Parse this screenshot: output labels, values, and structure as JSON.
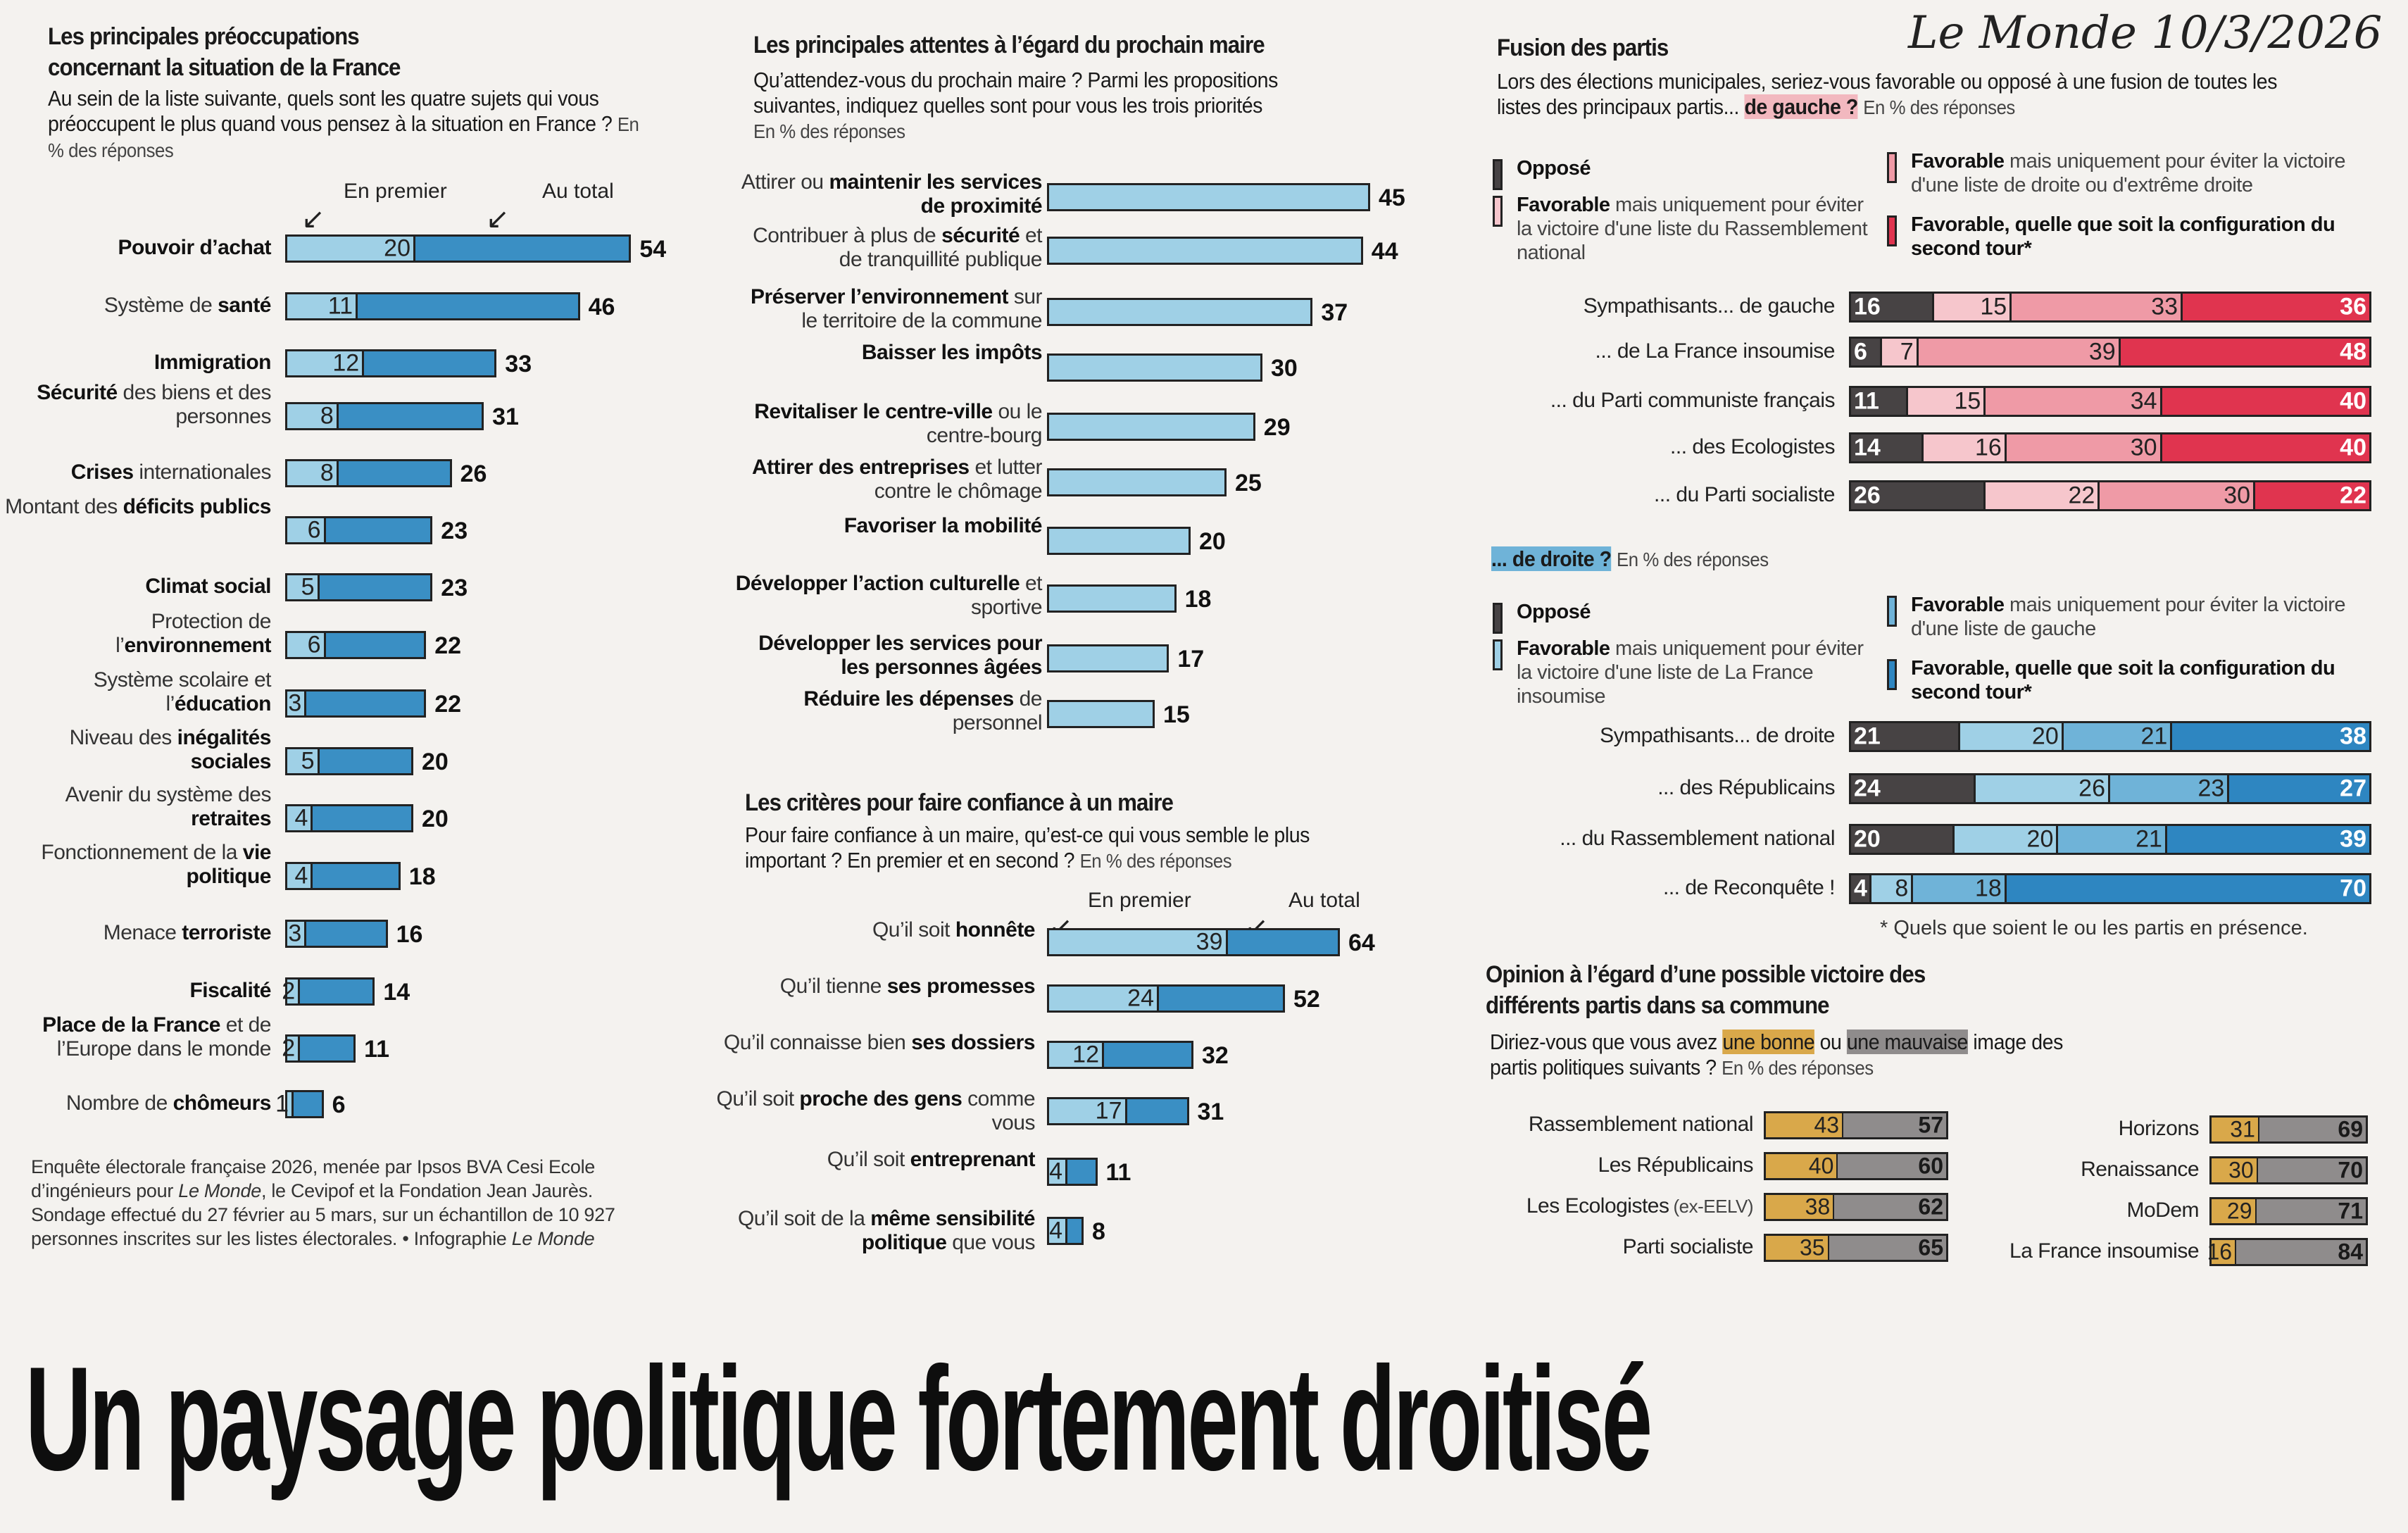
{
  "handwritten_note": "Le Monde 10/3/2026",
  "headline": "Un paysage politique fortement droitisé",
  "colors": {
    "light_blue": "#9fd0e6",
    "mid_blue": "#6fb3d8",
    "dark_blue": "#2e86c1",
    "primary_blue": "#3a8fc4",
    "opposed_dark": "#474344",
    "pink_light": "#f6c6cc",
    "pink_mid": "#ef9aa6",
    "red": "#e0344f",
    "gold": "#d9a84a",
    "grey": "#8f8c8c"
  },
  "chart_data": [
    {
      "id": "preoccupations",
      "type": "bar",
      "title": "Les principales préoccupations concernant la situation de la France",
      "subtitle": "Au sein de la liste suivante, quels sont les quatre sujets qui vous préoccupent le plus quand vous pensez à la situation en France ?",
      "unit": "En % des réponses",
      "legend": {
        "first": "En premier",
        "total": "Au total"
      },
      "categories": [
        {
          "pre": "",
          "bold": "Pouvoir d’achat",
          "post": ""
        },
        {
          "pre": "Système de ",
          "bold": "santé",
          "post": ""
        },
        {
          "pre": "",
          "bold": "Immigration",
          "post": ""
        },
        {
          "pre": "",
          "bold": "Sécurité",
          "post": " des biens et des personnes"
        },
        {
          "pre": "",
          "bold": "Crises",
          "post": " internationales"
        },
        {
          "pre": "Montant des ",
          "bold": "déficits publics",
          "post": ""
        },
        {
          "pre": "",
          "bold": "Climat social",
          "post": ""
        },
        {
          "pre": "Protection de l’",
          "bold": "environnement",
          "post": ""
        },
        {
          "pre": "Système scolaire et l’",
          "bold": "éducation",
          "post": ""
        },
        {
          "pre": "Niveau des ",
          "bold": "inégalités sociales",
          "post": ""
        },
        {
          "pre": "Avenir du système des ",
          "bold": "retraites",
          "post": ""
        },
        {
          "pre": "Fonctionnement de la ",
          "bold": "vie politique",
          "post": ""
        },
        {
          "pre": "Menace ",
          "bold": "terroriste",
          "post": ""
        },
        {
          "pre": "",
          "bold": "Fiscalité",
          "post": ""
        },
        {
          "pre": "",
          "bold": "Place de la France",
          "post": " et de l’Europe dans le monde"
        },
        {
          "pre": "Nombre de ",
          "bold": "chômeurs",
          "post": ""
        }
      ],
      "series": [
        {
          "name": "En premier",
          "values": [
            20,
            11,
            12,
            8,
            8,
            6,
            5,
            6,
            3,
            5,
            4,
            4,
            3,
            2,
            2,
            1
          ]
        },
        {
          "name": "Au total",
          "values": [
            54,
            46,
            33,
            31,
            26,
            23,
            23,
            22,
            22,
            20,
            20,
            18,
            16,
            14,
            11,
            6
          ]
        }
      ]
    },
    {
      "id": "attentes",
      "type": "bar",
      "title": "Les principales attentes à l’égard du prochain maire",
      "subtitle": "Qu’attendez-vous du prochain maire ?  Parmi les propositions suivantes, indiquez quelles sont pour vous les trois priorités",
      "unit": "En % des réponses",
      "categories": [
        {
          "pre": "Attirer ou ",
          "bold": "maintenir les services de proximité",
          "post": ""
        },
        {
          "pre": "Contribuer à plus de ",
          "bold": "sécurité",
          "post": " et de tranquillité publique"
        },
        {
          "pre": "",
          "bold": "Préserver l’environnement",
          "post": " sur le territoire de la commune"
        },
        {
          "pre": "",
          "bold": "Baisser les impôts",
          "post": ""
        },
        {
          "pre": "",
          "bold": "Revitaliser le centre-ville",
          "post": " ou le centre-bourg"
        },
        {
          "pre": "",
          "bold": "Attirer des entreprises",
          "post": " et lutter contre le chômage"
        },
        {
          "pre": "",
          "bold": "Favoriser la mobilité",
          "post": ""
        },
        {
          "pre": "",
          "bold": "Développer l’action culturelle",
          "post": " et sportive"
        },
        {
          "pre": "",
          "bold": "Développer les services pour les personnes âgées",
          "post": ""
        },
        {
          "pre": "",
          "bold": "Réduire les dépenses",
          "post": " de personnel"
        }
      ],
      "values": [
        45,
        44,
        37,
        30,
        29,
        25,
        20,
        18,
        17,
        15
      ]
    },
    {
      "id": "confiance",
      "type": "bar",
      "title": "Les critères pour faire confiance à un maire",
      "subtitle": "Pour faire confiance à un maire, qu’est-ce qui vous semble le plus important ? En premier et en second ?",
      "unit": "En % des réponses",
      "legend": {
        "first": "En premier",
        "total": "Au total"
      },
      "categories": [
        {
          "pre": "Qu’il soit ",
          "bold": "honnête",
          "post": ""
        },
        {
          "pre": "Qu’il tienne ",
          "bold": "ses promesses",
          "post": ""
        },
        {
          "pre": "Qu’il connaisse bien ",
          "bold": "ses dossiers",
          "post": ""
        },
        {
          "pre": "Qu’il soit ",
          "bold": "proche des gens",
          "post": " comme vous"
        },
        {
          "pre": "Qu’il soit ",
          "bold": "entreprenant",
          "post": ""
        },
        {
          "pre": "Qu’il soit de la ",
          "bold": "même sensibilité politique",
          "post": " que vous"
        }
      ],
      "series": [
        {
          "name": "En premier",
          "values": [
            39,
            24,
            12,
            17,
            4,
            4
          ]
        },
        {
          "name": "Au total",
          "values": [
            64,
            52,
            32,
            31,
            11,
            8
          ]
        }
      ]
    },
    {
      "id": "fusion-gauche",
      "type": "bar",
      "stacked": true,
      "title": "Fusion des partis",
      "subtitle_pre": "Lors des élections municipales, seriez-vous favorable ou opposé à une fusion de toutes les listes des principaux partis...",
      "subtitle_highlight": "de gauche ?",
      "unit": "En % des réponses",
      "legend": [
        {
          "bold": "Opposé",
          "rest": ""
        },
        {
          "bold": "Favorable",
          "rest": " mais uniquement pour éviter la victoire d'une liste du Rassemblement national"
        },
        {
          "bold": "Favorable",
          "rest": " mais uniquement pour éviter la victoire d'une liste de droite ou d'extrême droite"
        },
        {
          "bold": "Favorable, quelle que soit la configuration du second tour*",
          "rest": ""
        }
      ],
      "categories": [
        "Sympathisants... de gauche",
        "... de La France insoumise",
        "... du Parti communiste français",
        "... des Ecologistes",
        "... du Parti socialiste"
      ],
      "series": [
        {
          "name": "Opposé",
          "values": [
            16,
            6,
            11,
            14,
            26
          ]
        },
        {
          "name": "Favorable (éviter RN)",
          "values": [
            15,
            7,
            15,
            16,
            22
          ]
        },
        {
          "name": "Favorable (éviter droite / extrême droite)",
          "values": [
            33,
            39,
            34,
            30,
            30
          ]
        },
        {
          "name": "Favorable, quelle que soit la configuration",
          "values": [
            36,
            48,
            40,
            40,
            22
          ]
        }
      ]
    },
    {
      "id": "fusion-droite",
      "type": "bar",
      "stacked": true,
      "subtitle_highlight": "... de droite ?",
      "unit": "En % des réponses",
      "legend": [
        {
          "bold": "Opposé",
          "rest": ""
        },
        {
          "bold": "Favorable",
          "rest": " mais uniquement pour éviter la victoire d'une liste de La France insoumise"
        },
        {
          "bold": "Favorable",
          "rest": " mais uniquement pour éviter la victoire d'une liste de gauche"
        },
        {
          "bold": "Favorable, quelle que soit la configuration du second tour*",
          "rest": ""
        }
      ],
      "categories": [
        "Sympathisants... de droite",
        "... des Républicains",
        "... du Rassemblement national",
        "... de Reconquête !"
      ],
      "series": [
        {
          "name": "Opposé",
          "values": [
            21,
            24,
            20,
            4
          ]
        },
        {
          "name": "Favorable (éviter LFI)",
          "values": [
            20,
            26,
            20,
            8
          ]
        },
        {
          "name": "Favorable (éviter gauche)",
          "values": [
            21,
            23,
            21,
            18
          ]
        },
        {
          "name": "Favorable, quelle que soit la configuration",
          "values": [
            38,
            27,
            39,
            70
          ]
        }
      ],
      "footnote": "* Quels que soient le ou les partis en présence."
    },
    {
      "id": "opinion",
      "type": "bar",
      "stacked": true,
      "title": "Opinion à l’égard d’une possible victoire des différents partis dans sa commune",
      "subtitle_pre": "Diriez-vous que vous avez",
      "highlight_good": "une bonne",
      "subtitle_mid": "ou",
      "highlight_bad": "une mauvaise",
      "subtitle_post": "image des partis politiques suivants ?",
      "unit": "En % des réponses",
      "categories": [
        "Rassemblement national",
        "Les Républicains",
        "Les Ecologistes",
        "Parti socialiste",
        "Horizons",
        "Renaissance",
        "MoDem",
        "La France insoumise"
      ],
      "category_notes": [
        "",
        "",
        "(ex-EELV)",
        "",
        "",
        "",
        "",
        ""
      ],
      "series": [
        {
          "name": "Bonne image",
          "values": [
            43,
            40,
            38,
            35,
            31,
            30,
            29,
            16
          ]
        },
        {
          "name": "Mauvaise image",
          "values": [
            57,
            60,
            62,
            65,
            69,
            70,
            71,
            84
          ]
        }
      ]
    }
  ],
  "source_note": {
    "line1": "Enquête électorale française 2026, menée par Ipsos BVA Cesi Ecole d’ingénieurs pour ",
    "italic1": "Le Monde",
    "line2": ", le Cevipof et la Fondation Jean Jaurès. Sondage effectué du 27 février au 5 mars, sur un échantillon de 10 927 personnes inscrites sur les listes électorales. • Infographie ",
    "italic2": "Le Monde"
  }
}
